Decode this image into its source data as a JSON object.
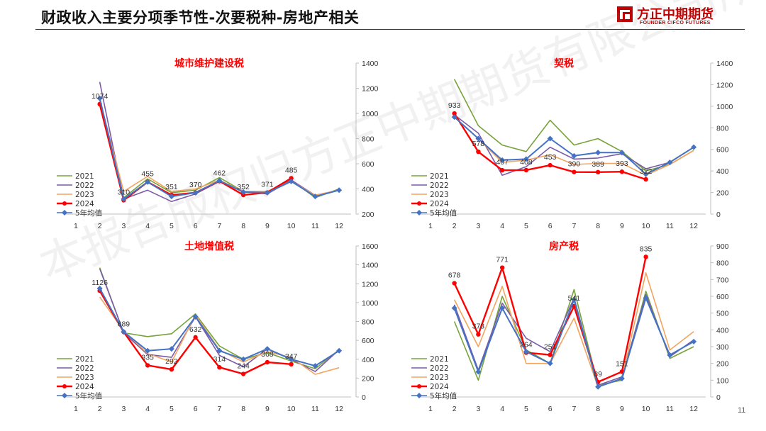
{
  "page": {
    "title": "财政收入主要分项季节性-次要税种-房地产相关",
    "page_number": "11",
    "watermark": "本报告版权归方正中期期货有限公司所有"
  },
  "logo": {
    "name_cn": "方正中期期货",
    "name_en": "FOUNDER CIFCO FUTURES",
    "color": "#c00000"
  },
  "colors": {
    "2021": "#77a33b",
    "2022": "#7a5ba8",
    "2023": "#f3a45f",
    "2024": "#ff0000",
    "avg": "#4472c4"
  },
  "chart_data": [
    {
      "type": "line",
      "title": "城市维护建设税",
      "categories": [
        "1",
        "2",
        "3",
        "4",
        "5",
        "6",
        "7",
        "8",
        "9",
        "10",
        "11",
        "12"
      ],
      "ylim": [
        200,
        1400
      ],
      "yticks": [
        "200",
        "400",
        "600",
        "800",
        "1000",
        "1200",
        "1400"
      ],
      "series": [
        {
          "name": "2021",
          "values": [
            null,
            1120,
            330,
            480,
            370,
            390,
            490,
            380,
            380,
            470,
            330,
            400
          ]
        },
        {
          "name": "2022",
          "values": [
            null,
            1250,
            320,
            390,
            300,
            360,
            460,
            380,
            360,
            470,
            350,
            390
          ]
        },
        {
          "name": "2023",
          "values": [
            null,
            1110,
            380,
            500,
            380,
            400,
            470,
            380,
            380,
            460,
            350,
            390
          ]
        },
        {
          "name": "2024",
          "values": [
            null,
            1074,
            310,
            455,
            351,
            370,
            462,
            352,
            371,
            485,
            null,
            null
          ],
          "labels": [
            "",
            "1074",
            "310",
            "455",
            "351",
            "370",
            "462",
            "352",
            "371",
            "485",
            "",
            ""
          ]
        },
        {
          "name": "5年均值",
          "values": [
            null,
            1120,
            320,
            455,
            340,
            370,
            465,
            375,
            370,
            460,
            340,
            390
          ]
        }
      ]
    },
    {
      "type": "line",
      "title": "契税",
      "categories": [
        "1",
        "2",
        "3",
        "4",
        "5",
        "6",
        "7",
        "8",
        "9",
        "10",
        "11",
        "12"
      ],
      "ylim": [
        0,
        1400
      ],
      "yticks": [
        "0",
        "200",
        "400",
        "600",
        "800",
        "1000",
        "1200",
        "1400"
      ],
      "series": [
        {
          "name": "2021",
          "values": [
            null,
            1250,
            820,
            640,
            580,
            870,
            640,
            700,
            580,
            400,
            460,
            590
          ]
        },
        {
          "name": "2022",
          "values": [
            null,
            920,
            750,
            360,
            440,
            620,
            510,
            520,
            560,
            420,
            480,
            620
          ]
        },
        {
          "name": "2023",
          "values": [
            null,
            900,
            700,
            480,
            500,
            550,
            460,
            470,
            470,
            360,
            460,
            590
          ]
        },
        {
          "name": "2024",
          "values": [
            null,
            933,
            578,
            407,
            408,
            453,
            390,
            389,
            393,
            322,
            null,
            null
          ],
          "labels": [
            "",
            "933",
            "578",
            "407",
            "408",
            "453",
            "390",
            "389",
            "393",
            "322",
            "",
            ""
          ]
        },
        {
          "name": "5年均值",
          "values": [
            null,
            900,
            700,
            500,
            510,
            700,
            540,
            570,
            570,
            370,
            480,
            620
          ]
        }
      ]
    },
    {
      "type": "line",
      "title": "土地增值税",
      "categories": [
        "1",
        "2",
        "3",
        "4",
        "5",
        "6",
        "7",
        "8",
        "9",
        "10",
        "11",
        "12"
      ],
      "ylim": [
        0,
        1600
      ],
      "yticks": [
        "0",
        "200",
        "400",
        "600",
        "800",
        "1000",
        "1200",
        "1400",
        "1600"
      ],
      "series": [
        {
          "name": "2021",
          "values": [
            null,
            1370,
            680,
            640,
            670,
            880,
            540,
            400,
            470,
            380,
            300,
            500
          ]
        },
        {
          "name": "2022",
          "values": [
            null,
            1360,
            680,
            450,
            420,
            850,
            440,
            320,
            510,
            400,
            270,
            500
          ]
        },
        {
          "name": "2023",
          "values": [
            null,
            1060,
            700,
            460,
            370,
            870,
            500,
            370,
            480,
            420,
            240,
            310
          ]
        },
        {
          "name": "2024",
          "values": [
            null,
            1126,
            689,
            335,
            292,
            632,
            314,
            244,
            368,
            347,
            null,
            null
          ],
          "labels": [
            "",
            "1126",
            "689",
            "335",
            "292",
            "632",
            "314",
            "244",
            "368",
            "347",
            "",
            ""
          ]
        },
        {
          "name": "5年均值",
          "values": [
            null,
            1150,
            690,
            490,
            510,
            850,
            490,
            400,
            510,
            400,
            330,
            490
          ]
        }
      ]
    },
    {
      "type": "line",
      "title": "房产税",
      "categories": [
        "1",
        "2",
        "3",
        "4",
        "5",
        "6",
        "7",
        "8",
        "9",
        "10",
        "11",
        "12"
      ],
      "ylim": [
        0,
        900
      ],
      "yticks": [
        "0",
        "100",
        "200",
        "300",
        "400",
        "500",
        "600",
        "700",
        "800",
        "900"
      ],
      "series": [
        {
          "name": "2021",
          "values": [
            null,
            450,
            100,
            600,
            280,
            200,
            640,
            70,
            100,
            630,
            230,
            300
          ]
        },
        {
          "name": "2022",
          "values": [
            null,
            550,
            160,
            560,
            350,
            270,
            590,
            70,
            120,
            610,
            240,
            340
          ]
        },
        {
          "name": "2023",
          "values": [
            null,
            580,
            300,
            660,
            200,
            200,
            470,
            60,
            110,
            740,
            280,
            390
          ]
        },
        {
          "name": "2024",
          "values": [
            null,
            678,
            373,
            771,
            264,
            251,
            541,
            89,
            151,
            835,
            null,
            null
          ],
          "labels": [
            "",
            "678",
            "373",
            "771",
            "264",
            "251",
            "541",
            "89",
            "151",
            "835",
            "",
            ""
          ]
        },
        {
          "name": "5年均值",
          "values": [
            null,
            530,
            150,
            530,
            270,
            200,
            580,
            60,
            110,
            590,
            250,
            330
          ]
        }
      ]
    }
  ]
}
